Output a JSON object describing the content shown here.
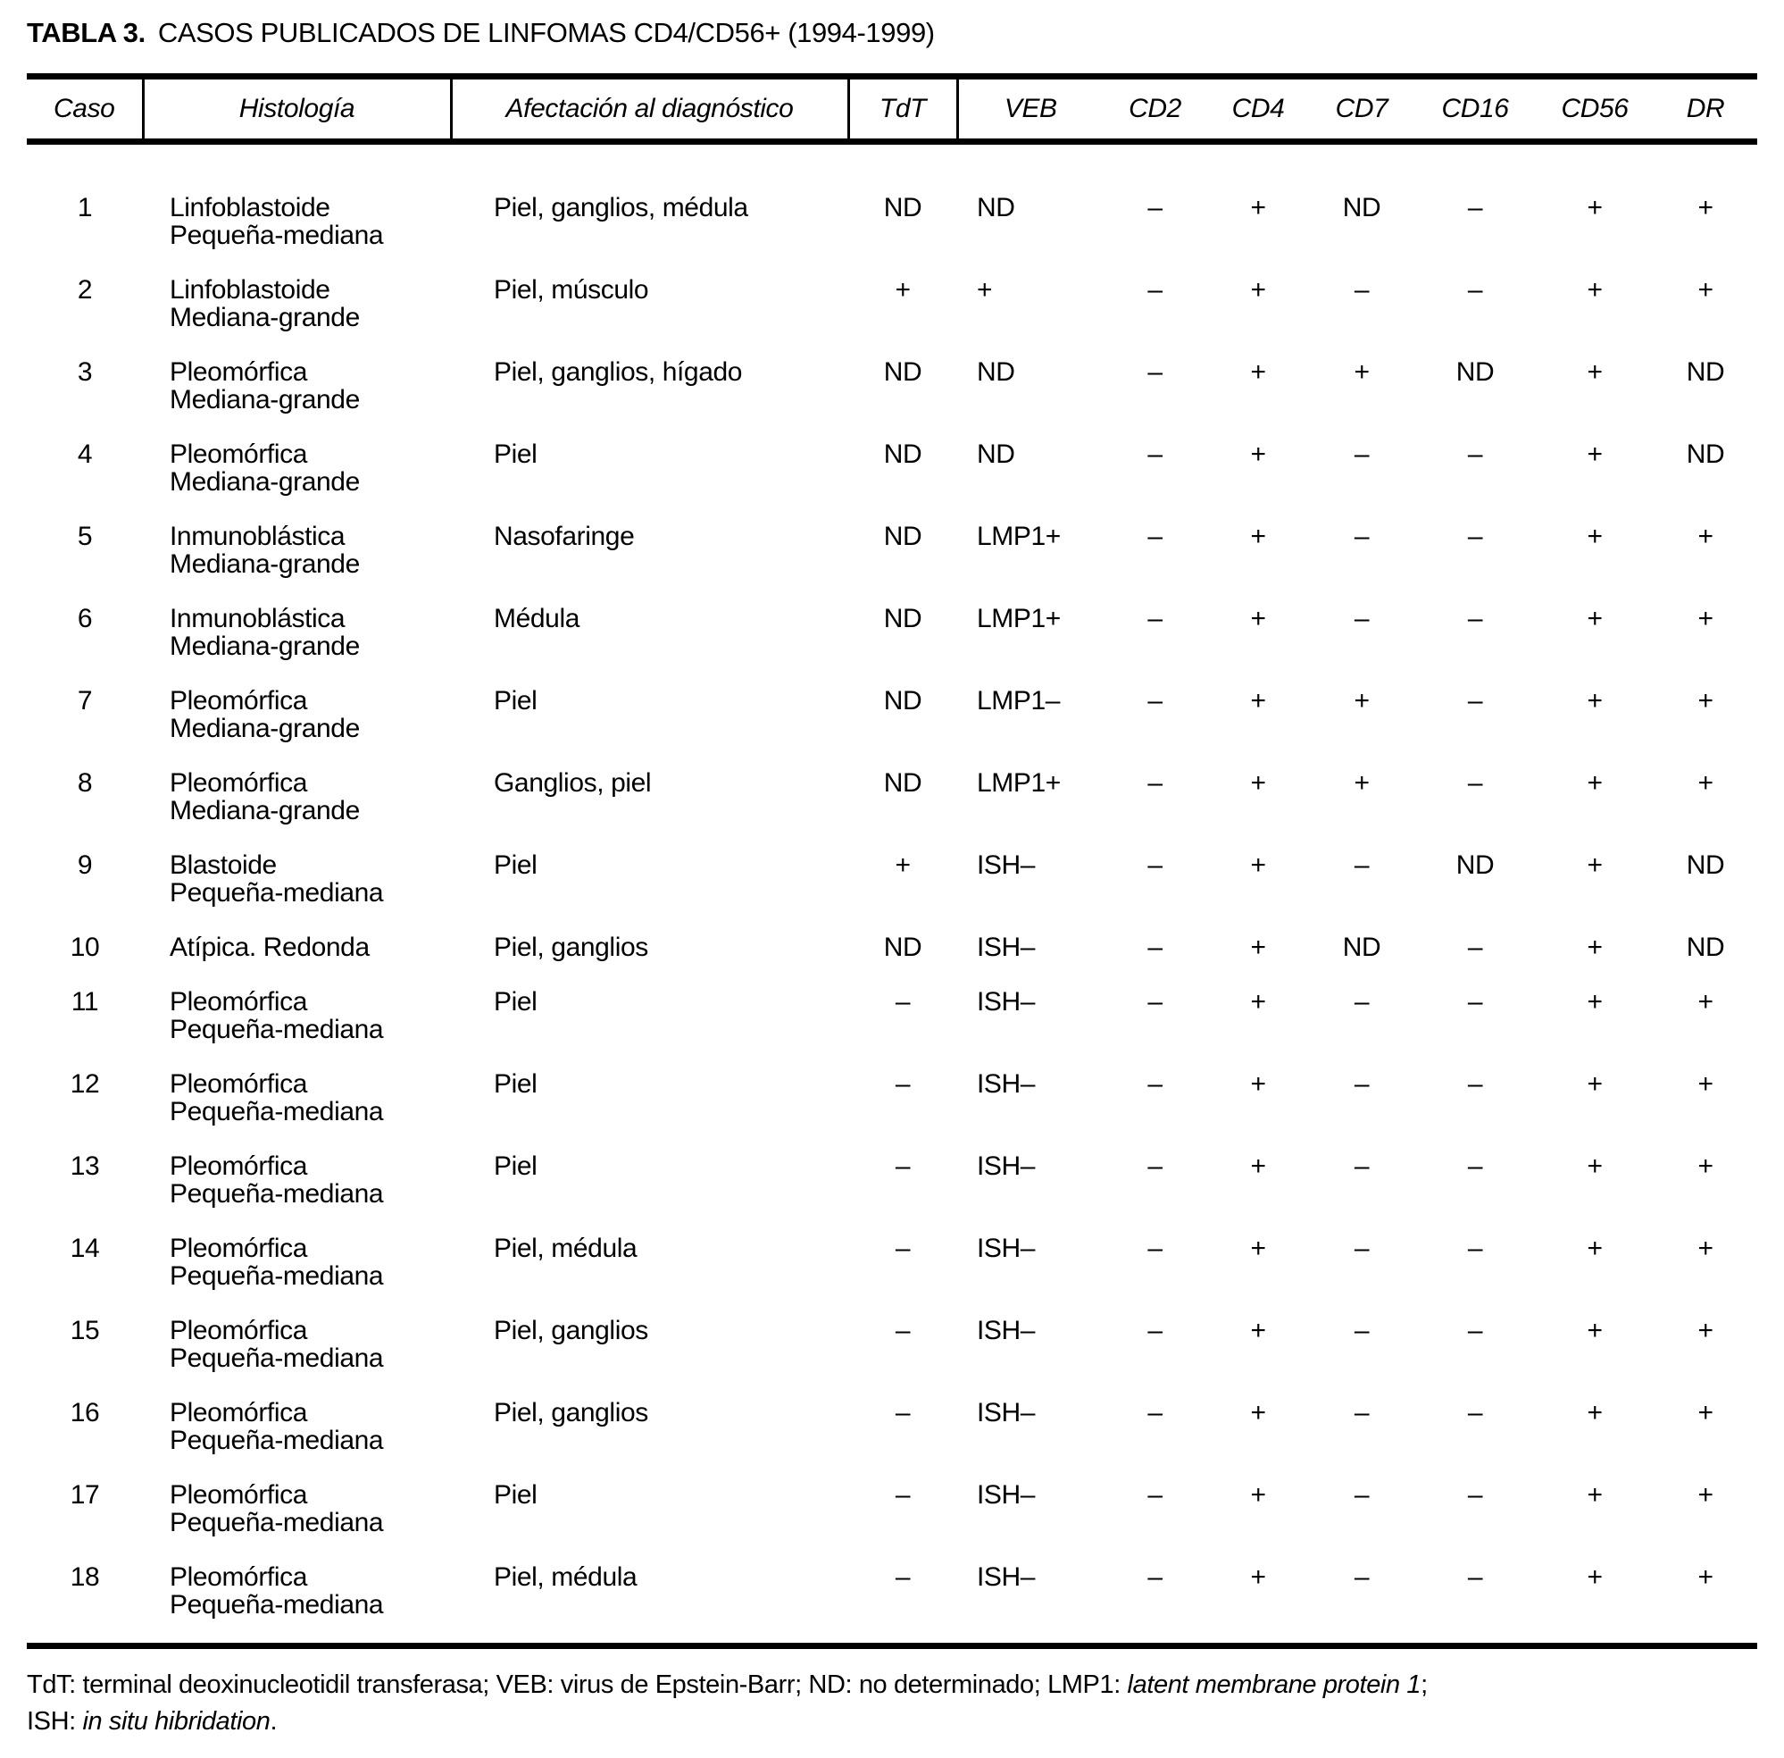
{
  "title": {
    "label": "TABLA 3.",
    "text": "CASOS PUBLICADOS DE LINFOMAS CD4/CD56+ (1994-1999)"
  },
  "table": {
    "columns": [
      "Caso",
      "Histología",
      "Afectación al diagnóstico",
      "TdT",
      "VEB",
      "CD2",
      "CD4",
      "CD7",
      "CD16",
      "CD56",
      "DR"
    ],
    "rows": [
      {
        "caso": "1",
        "histologia": [
          "Linfoblastoide",
          "Pequeña-mediana"
        ],
        "afectacion": "Piel, ganglios, médula",
        "tdt": "ND",
        "veb": "ND",
        "cd2": "–",
        "cd4": "+",
        "cd7": "ND",
        "cd16": "–",
        "cd56": "+",
        "dr": "+"
      },
      {
        "caso": "2",
        "histologia": [
          "Linfoblastoide",
          "Mediana-grande"
        ],
        "afectacion": "Piel, músculo",
        "tdt": "+",
        "veb": "+",
        "cd2": "–",
        "cd4": "+",
        "cd7": "–",
        "cd16": "–",
        "cd56": "+",
        "dr": "+"
      },
      {
        "caso": "3",
        "histologia": [
          "Pleomórfica",
          "Mediana-grande"
        ],
        "afectacion": "Piel, ganglios, hígado",
        "tdt": "ND",
        "veb": "ND",
        "cd2": "–",
        "cd4": "+",
        "cd7": "+",
        "cd16": "ND",
        "cd56": "+",
        "dr": "ND"
      },
      {
        "caso": "4",
        "histologia": [
          "Pleomórfica",
          "Mediana-grande"
        ],
        "afectacion": "Piel",
        "tdt": "ND",
        "veb": "ND",
        "cd2": "–",
        "cd4": "+",
        "cd7": "–",
        "cd16": "–",
        "cd56": "+",
        "dr": "ND"
      },
      {
        "caso": "5",
        "histologia": [
          "Inmunoblástica",
          "Mediana-grande"
        ],
        "afectacion": "Nasofaringe",
        "tdt": "ND",
        "veb": "LMP1+",
        "cd2": "–",
        "cd4": "+",
        "cd7": "–",
        "cd16": "–",
        "cd56": "+",
        "dr": "+"
      },
      {
        "caso": "6",
        "histologia": [
          "Inmunoblástica",
          "Mediana-grande"
        ],
        "afectacion": "Médula",
        "tdt": "ND",
        "veb": "LMP1+",
        "cd2": "–",
        "cd4": "+",
        "cd7": "–",
        "cd16": "–",
        "cd56": "+",
        "dr": "+"
      },
      {
        "caso": "7",
        "histologia": [
          "Pleomórfica",
          "Mediana-grande"
        ],
        "afectacion": "Piel",
        "tdt": "ND",
        "veb": "LMP1–",
        "cd2": "–",
        "cd4": "+",
        "cd7": "+",
        "cd16": "–",
        "cd56": "+",
        "dr": "+"
      },
      {
        "caso": "8",
        "histologia": [
          "Pleomórfica",
          "Mediana-grande"
        ],
        "afectacion": "Ganglios, piel",
        "tdt": "ND",
        "veb": "LMP1+",
        "cd2": "–",
        "cd4": "+",
        "cd7": "+",
        "cd16": "–",
        "cd56": "+",
        "dr": "+"
      },
      {
        "caso": "9",
        "histologia": [
          "Blastoide",
          "Pequeña-mediana"
        ],
        "afectacion": "Piel",
        "tdt": "+",
        "veb": "ISH–",
        "cd2": "–",
        "cd4": "+",
        "cd7": "–",
        "cd16": "ND",
        "cd56": "+",
        "dr": "ND"
      },
      {
        "caso": "10",
        "histologia": [
          "Atípica. Redonda"
        ],
        "afectacion": "Piel, ganglios",
        "tdt": "ND",
        "veb": "ISH–",
        "cd2": "–",
        "cd4": "+",
        "cd7": "ND",
        "cd16": "–",
        "cd56": "+",
        "dr": "ND"
      },
      {
        "caso": "11",
        "histologia": [
          "Pleomórfica",
          "Pequeña-mediana"
        ],
        "afectacion": "Piel",
        "tdt": "–",
        "veb": "ISH–",
        "cd2": "–",
        "cd4": "+",
        "cd7": "–",
        "cd16": "–",
        "cd56": "+",
        "dr": "+"
      },
      {
        "caso": "12",
        "histologia": [
          "Pleomórfica",
          "Pequeña-mediana"
        ],
        "afectacion": "Piel",
        "tdt": "–",
        "veb": "ISH–",
        "cd2": "–",
        "cd4": "+",
        "cd7": "–",
        "cd16": "–",
        "cd56": "+",
        "dr": "+"
      },
      {
        "caso": "13",
        "histologia": [
          "Pleomórfica",
          "Pequeña-mediana"
        ],
        "afectacion": "Piel",
        "tdt": "–",
        "veb": "ISH–",
        "cd2": "–",
        "cd4": "+",
        "cd7": "–",
        "cd16": "–",
        "cd56": "+",
        "dr": "+"
      },
      {
        "caso": "14",
        "histologia": [
          "Pleomórfica",
          "Pequeña-mediana"
        ],
        "afectacion": "Piel, médula",
        "tdt": "–",
        "veb": "ISH–",
        "cd2": "–",
        "cd4": "+",
        "cd7": "–",
        "cd16": "–",
        "cd56": "+",
        "dr": "+"
      },
      {
        "caso": "15",
        "histologia": [
          "Pleomórfica",
          "Pequeña-mediana"
        ],
        "afectacion": "Piel, ganglios",
        "tdt": "–",
        "veb": "ISH–",
        "cd2": "–",
        "cd4": "+",
        "cd7": "–",
        "cd16": "–",
        "cd56": "+",
        "dr": "+"
      },
      {
        "caso": "16",
        "histologia": [
          "Pleomórfica",
          "Pequeña-mediana"
        ],
        "afectacion": "Piel, ganglios",
        "tdt": "–",
        "veb": "ISH–",
        "cd2": "–",
        "cd4": "+",
        "cd7": "–",
        "cd16": "–",
        "cd56": "+",
        "dr": "+"
      },
      {
        "caso": "17",
        "histologia": [
          "Pleomórfica",
          "Pequeña-mediana"
        ],
        "afectacion": "Piel",
        "tdt": "–",
        "veb": "ISH–",
        "cd2": "–",
        "cd4": "+",
        "cd7": "–",
        "cd16": "–",
        "cd56": "+",
        "dr": "+"
      },
      {
        "caso": "18",
        "histologia": [
          "Pleomórfica",
          "Pequeña-mediana"
        ],
        "afectacion": "Piel, médula",
        "tdt": "–",
        "veb": "ISH–",
        "cd2": "–",
        "cd4": "+",
        "cd7": "–",
        "cd16": "–",
        "cd56": "+",
        "dr": "+"
      }
    ]
  },
  "footnotes": [
    [
      {
        "text": "TdT: terminal deoxinucleotidil transferasa; VEB: virus de Epstein-Barr; ND: no determinado; LMP1: ",
        "italic": false
      },
      {
        "text": "latent membrane protein 1",
        "italic": true
      },
      {
        "text": ";",
        "italic": false
      }
    ],
    [
      {
        "text": "ISH: ",
        "italic": false
      },
      {
        "text": "in situ hibridation",
        "italic": true
      },
      {
        "text": ".",
        "italic": false
      }
    ]
  ]
}
